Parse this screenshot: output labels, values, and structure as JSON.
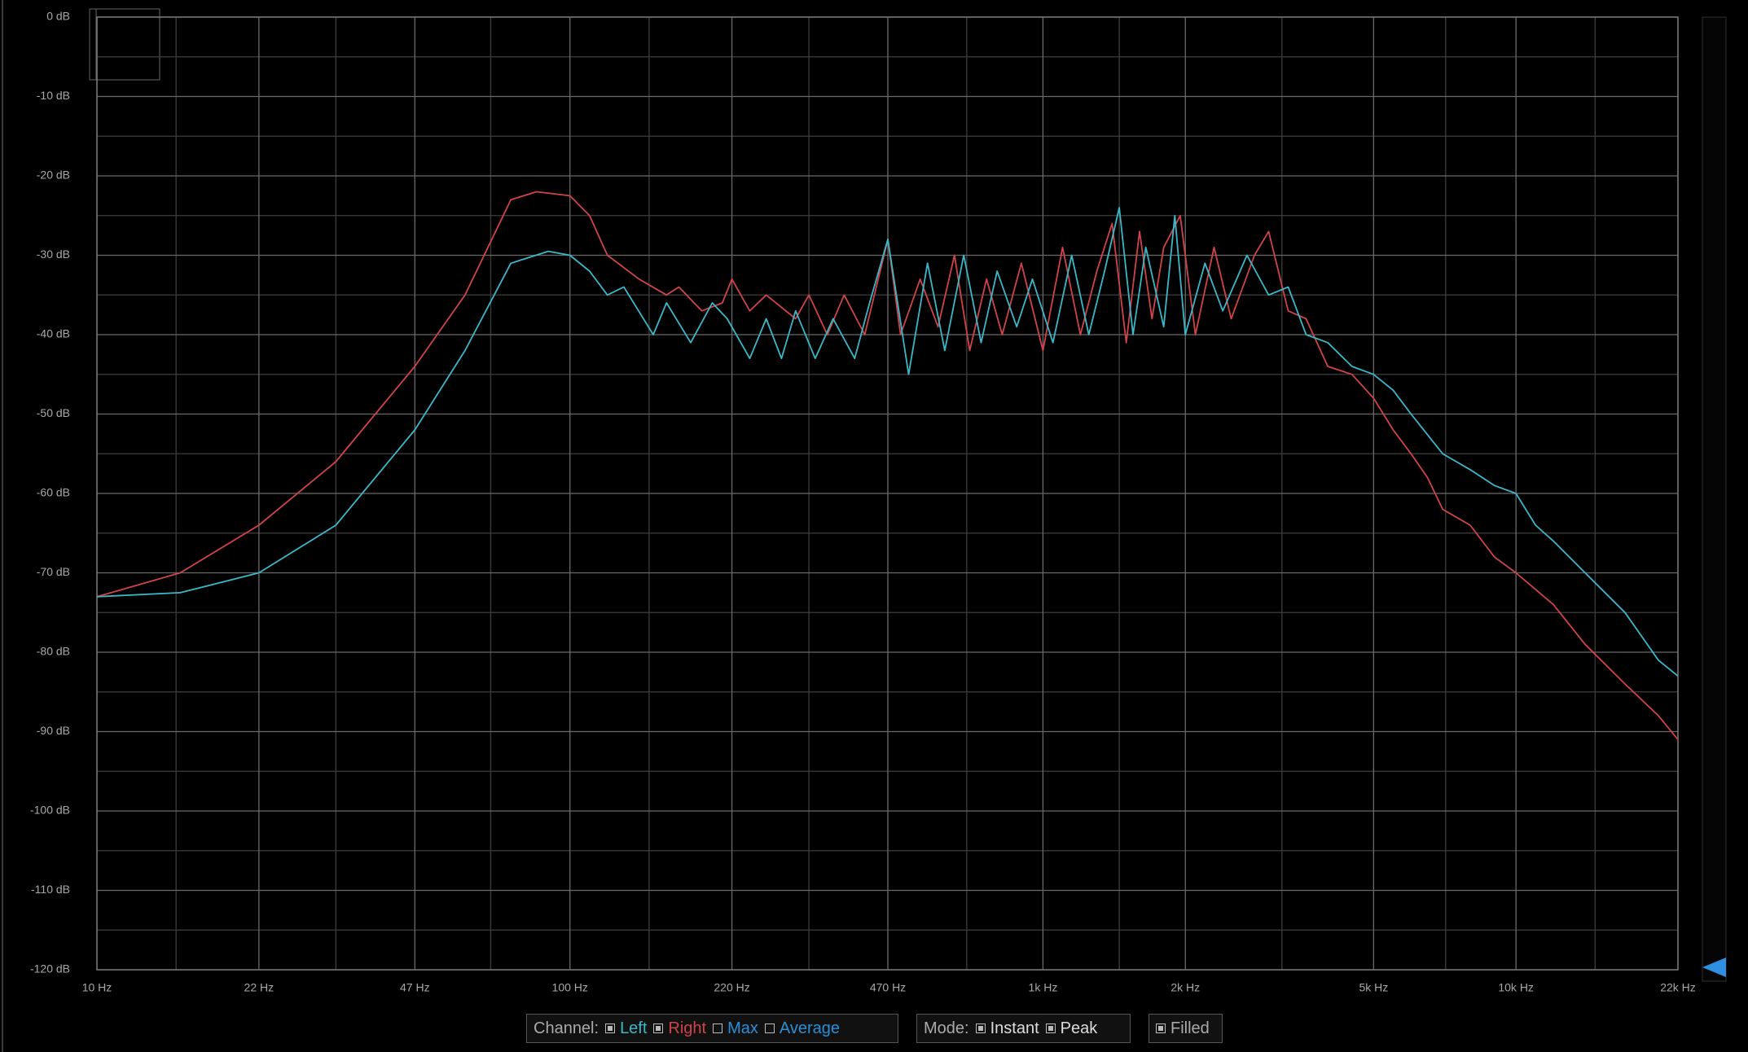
{
  "chart_data": {
    "type": "line",
    "log_x": true,
    "grid": true,
    "xlim": [
      10,
      22000
    ],
    "ylim": [
      -120,
      0
    ],
    "xticks": [
      {
        "value": 10,
        "label": "10 Hz"
      },
      {
        "value": 22,
        "label": "22 Hz"
      },
      {
        "value": 47,
        "label": "47 Hz"
      },
      {
        "value": 100,
        "label": "100 Hz"
      },
      {
        "value": 220,
        "label": "220 Hz"
      },
      {
        "value": 470,
        "label": "470 Hz"
      },
      {
        "value": 1000,
        "label": "1k Hz"
      },
      {
        "value": 2000,
        "label": "2k Hz"
      },
      {
        "value": 5000,
        "label": "5k Hz"
      },
      {
        "value": 10000,
        "label": "10k Hz"
      },
      {
        "value": 22000,
        "label": "22k Hz"
      }
    ],
    "x_minor_ticks": [
      14.7,
      32,
      68,
      147,
      320,
      690,
      1450,
      3200,
      7100,
      14700
    ],
    "yticks": [
      {
        "value": 0,
        "label": "0 dB"
      },
      {
        "value": -10,
        "label": "-10 dB"
      },
      {
        "value": -20,
        "label": "-20 dB"
      },
      {
        "value": -30,
        "label": "-30 dB"
      },
      {
        "value": -40,
        "label": "-40 dB"
      },
      {
        "value": -50,
        "label": "-50 dB"
      },
      {
        "value": -60,
        "label": "-60 dB"
      },
      {
        "value": -70,
        "label": "-70 dB"
      },
      {
        "value": -80,
        "label": "-80 dB"
      },
      {
        "value": -90,
        "label": "-90 dB"
      },
      {
        "value": -100,
        "label": "-100 dB"
      },
      {
        "value": -110,
        "label": "-110 dB"
      },
      {
        "value": -120,
        "label": "-120 dB"
      }
    ],
    "y_minor_ticks": [
      -5,
      -15,
      -25,
      -35,
      -45,
      -55,
      -65,
      -75,
      -85,
      -95,
      -105,
      -115
    ],
    "series": [
      {
        "name": "Right",
        "color": "#d0434a",
        "x": [
          10,
          15,
          22,
          32,
          47,
          60,
          75,
          85,
          100,
          110,
          120,
          140,
          160,
          170,
          190,
          210,
          220,
          240,
          260,
          300,
          320,
          350,
          380,
          420,
          470,
          500,
          550,
          600,
          650,
          700,
          760,
          820,
          900,
          1000,
          1100,
          1200,
          1300,
          1400,
          1500,
          1600,
          1700,
          1800,
          1950,
          2100,
          2300,
          2500,
          2800,
          3000,
          3300,
          3600,
          4000,
          4500,
          5000,
          5500,
          6000,
          6500,
          7000,
          8000,
          9000,
          10000,
          12000,
          14000,
          17000,
          20000,
          22000
        ],
        "values": [
          -73,
          -70,
          -64,
          -56,
          -44,
          -35,
          -23,
          -22,
          -22.5,
          -25,
          -30,
          -33,
          -35,
          -34,
          -37,
          -36,
          -33,
          -37,
          -35,
          -38,
          -35,
          -40,
          -35,
          -40,
          -28,
          -40,
          -33,
          -39,
          -30,
          -42,
          -33,
          -40,
          -31,
          -42,
          -29,
          -40,
          -32,
          -26,
          -41,
          -27,
          -38,
          -29,
          -25,
          -40,
          -29,
          -38,
          -30,
          -27,
          -37,
          -38,
          -44,
          -45,
          -48,
          -52,
          -55,
          -58,
          -62,
          -64,
          -68,
          -70,
          -74,
          -79,
          -84,
          -88,
          -91
        ]
      },
      {
        "name": "Left",
        "color": "#3bb8c8",
        "x": [
          10,
          15,
          22,
          32,
          47,
          60,
          75,
          90,
          100,
          110,
          120,
          130,
          150,
          160,
          180,
          200,
          215,
          240,
          260,
          280,
          300,
          330,
          360,
          400,
          430,
          470,
          520,
          570,
          620,
          680,
          740,
          800,
          880,
          950,
          1050,
          1150,
          1250,
          1350,
          1450,
          1550,
          1650,
          1800,
          1900,
          2000,
          2200,
          2400,
          2700,
          3000,
          3300,
          3600,
          4000,
          4500,
          5000,
          5500,
          6000,
          7000,
          8000,
          9000,
          10000,
          11000,
          12000,
          14000,
          17000,
          20000,
          22000
        ],
        "values": [
          -73,
          -72.5,
          -70,
          -64,
          -52,
          -42,
          -31,
          -29.5,
          -30,
          -32,
          -35,
          -34,
          -40,
          -36,
          -41,
          -36,
          -38,
          -43,
          -38,
          -43,
          -37,
          -43,
          -38,
          -43,
          -36,
          -28,
          -45,
          -31,
          -42,
          -30,
          -41,
          -32,
          -39,
          -33,
          -41,
          -30,
          -40,
          -32,
          -24,
          -40,
          -29,
          -39,
          -25,
          -40,
          -31,
          -37,
          -30,
          -35,
          -34,
          -40,
          -41,
          -44,
          -45,
          -47,
          -50,
          -55,
          -57,
          -59,
          -60,
          -64,
          -66,
          -70,
          -75,
          -81,
          -83
        ]
      }
    ]
  },
  "controls": {
    "channel_label": "Channel:",
    "channels": [
      {
        "label": "Left",
        "checked": true,
        "color": "#3bb8c8"
      },
      {
        "label": "Right",
        "checked": true,
        "color": "#d0434a"
      },
      {
        "label": "Max",
        "checked": false,
        "color": "#2a8fd8"
      },
      {
        "label": "Average",
        "checked": false,
        "color": "#2a8fd8"
      }
    ],
    "mode_label": "Mode:",
    "modes": [
      {
        "label": "Instant",
        "checked": true,
        "color": "#dddddd"
      },
      {
        "label": "Peak",
        "checked": true,
        "color": "#dddddd"
      }
    ],
    "filled": [
      {
        "label": "Filled",
        "checked": true,
        "color": "#aaaaaa"
      }
    ]
  }
}
